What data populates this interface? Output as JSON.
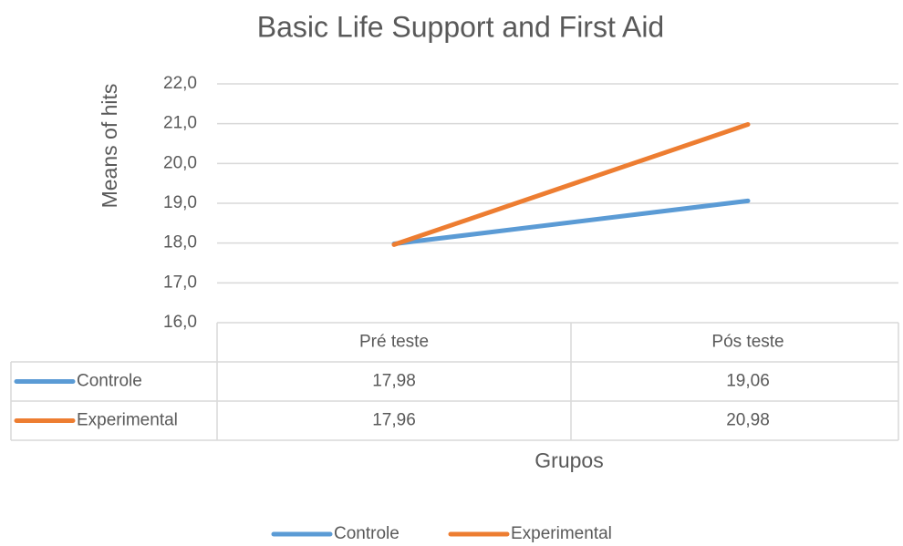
{
  "chart_data": {
    "type": "line",
    "title": "Basic Life Support and First Aid",
    "y_label": "Means of hits",
    "x_label": "Grupos",
    "categories": [
      "Pré teste",
      "Pós teste"
    ],
    "series": [
      {
        "name": "Controle",
        "color": "#5b9bd5",
        "values": [
          17.98,
          19.06
        ],
        "value_labels": [
          "17,98",
          "19,06"
        ]
      },
      {
        "name": "Experimental",
        "color": "#ed7d31",
        "values": [
          17.96,
          20.98
        ],
        "value_labels": [
          "17,96",
          "20,98"
        ]
      }
    ],
    "ylim": [
      16,
      22
    ],
    "yticks": [
      {
        "value": 16,
        "label": "16,0"
      },
      {
        "value": 17,
        "label": "17,0"
      },
      {
        "value": 18,
        "label": "18,0"
      },
      {
        "value": 19,
        "label": "19,0"
      },
      {
        "value": 20,
        "label": "20,0"
      },
      {
        "value": 21,
        "label": "21,0"
      },
      {
        "value": 22,
        "label": "22,0"
      }
    ],
    "grid": true,
    "legend": "bottom"
  }
}
